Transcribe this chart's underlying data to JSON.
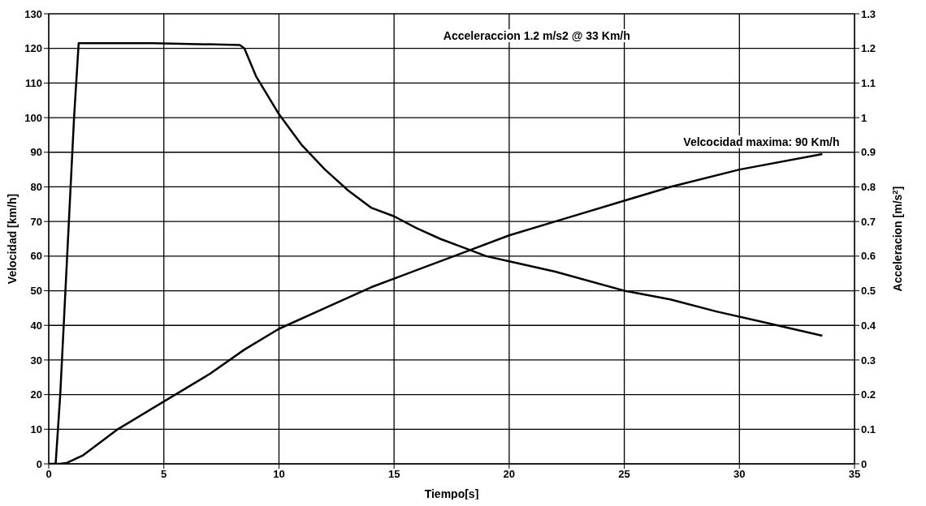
{
  "chart_data": {
    "type": "line",
    "xlabel": "Tiempo[s]",
    "ylabel": "Velocidad  [km/h]",
    "y2label": "Acceleracion [m/s$^{2}$]",
    "annotations": [
      "Acceleraccion 1.2 m/s2 @ 33 Km/h",
      "Velcocidad maxima: 90 Km/h"
    ],
    "series": [
      {
        "color": "#000000",
        "axis": "y",
        "x": [
          0,
          0.5,
          0.8,
          1.5,
          3,
          5,
          7,
          8.5,
          10,
          12,
          14,
          16,
          18,
          20,
          22,
          25,
          27,
          30,
          33.6
        ],
        "values": [
          0,
          0,
          0.3,
          2.5,
          10,
          18,
          26,
          33,
          39,
          45,
          51,
          56,
          61,
          66,
          70,
          76,
          80,
          85,
          89.5
        ]
      },
      {
        "color": "#000000",
        "axis": "y2",
        "x": [
          0.2,
          0.3,
          0.5,
          0.8,
          1.1,
          1.3,
          4.5,
          8.3,
          8.5,
          9,
          10,
          11,
          12,
          13,
          14,
          15,
          16,
          17,
          18,
          19,
          20,
          22,
          25,
          27,
          29,
          31,
          33.6
        ],
        "values": [
          0,
          0,
          0.2,
          0.6,
          1.0,
          1.215,
          1.215,
          1.21,
          1.2,
          1.12,
          1.01,
          0.92,
          0.85,
          0.79,
          0.74,
          0.715,
          0.68,
          0.65,
          0.625,
          0.6,
          0.585,
          0.555,
          0.5,
          0.475,
          0.44,
          0.41,
          0.37
        ]
      }
    ],
    "xlim": [
      0,
      35
    ],
    "xticks": [
      0,
      5,
      10,
      15,
      20,
      25,
      30,
      35
    ],
    "ylim": [
      0,
      130
    ],
    "yticks": [
      0,
      10,
      20,
      30,
      40,
      50,
      60,
      70,
      80,
      90,
      100,
      110,
      120,
      130
    ],
    "y2lim": [
      0,
      1.3
    ],
    "y2ticks": [
      0,
      0.1,
      0.2,
      0.3,
      0.4,
      0.5,
      0.6,
      0.7,
      0.8,
      0.9,
      1,
      1.1,
      1.2,
      1.3
    ],
    "grid": true,
    "legend": false,
    "marker": "none",
    "line_style": "solid"
  }
}
